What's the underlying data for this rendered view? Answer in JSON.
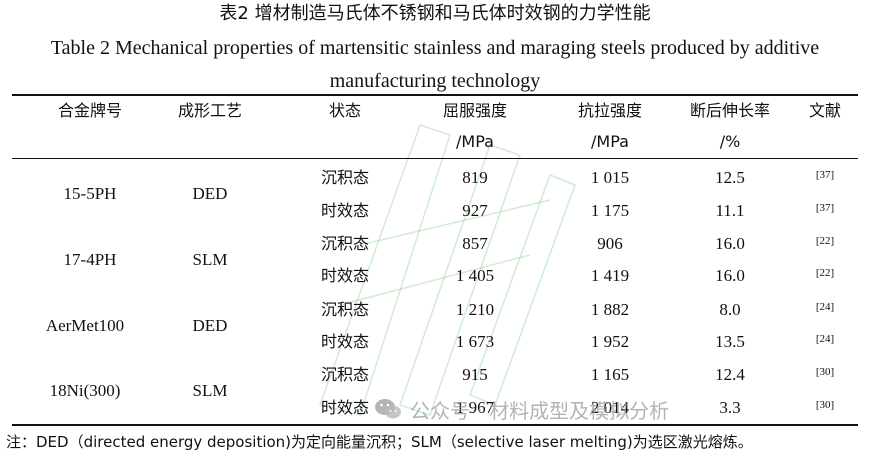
{
  "title": {
    "cn": "表2  增材制造马氏体不锈钢和马氏体时效钢的力学性能",
    "en": "Table 2 Mechanical properties of martensitic stainless and maraging steels produced by additive manufacturing technology"
  },
  "table": {
    "headers": [
      {
        "line1": "合金牌号",
        "line2": ""
      },
      {
        "line1": "成形工艺",
        "line2": ""
      },
      {
        "line1": "状态",
        "line2": ""
      },
      {
        "line1": "屈服强度",
        "line2": "/MPa"
      },
      {
        "line1": "抗拉强度",
        "line2": "/MPa"
      },
      {
        "line1": "断后伸长率",
        "line2": "/%"
      },
      {
        "line1": "文献",
        "line2": ""
      }
    ],
    "groups": [
      {
        "alloy": "15-5PH",
        "process": "DED",
        "rows": [
          {
            "state": "沉积态",
            "yield": "819",
            "tensile": "1 015",
            "elongation": "12.5",
            "ref": "[37]"
          },
          {
            "state": "时效态",
            "yield": "927",
            "tensile": "1 175",
            "elongation": "11.1",
            "ref": "[37]"
          }
        ]
      },
      {
        "alloy": "17-4PH",
        "process": "SLM",
        "rows": [
          {
            "state": "沉积态",
            "yield": "857",
            "tensile": "906",
            "elongation": "16.0",
            "ref": "[22]"
          },
          {
            "state": "时效态",
            "yield": "1 405",
            "tensile": "1 419",
            "elongation": "16.0",
            "ref": "[22]"
          }
        ]
      },
      {
        "alloy": "AerMet100",
        "process": "DED",
        "rows": [
          {
            "state": "沉积态",
            "yield": "1 210",
            "tensile": "1 882",
            "elongation": "8.0",
            "ref": "[24]"
          },
          {
            "state": "时效态",
            "yield": "1 673",
            "tensile": "1 952",
            "elongation": "13.5",
            "ref": "[24]"
          }
        ]
      },
      {
        "alloy": "18Ni(300)",
        "process": "SLM",
        "rows": [
          {
            "state": "沉积态",
            "yield": "915",
            "tensile": "1 165",
            "elongation": "12.4",
            "ref": "[30]"
          },
          {
            "state": "时效态",
            "yield": "1 967",
            "tensile": "2 014",
            "elongation": "3.3",
            "ref": "[30]"
          }
        ]
      }
    ]
  },
  "note": "注：DED（directed energy deposition)为定向能量沉积；SLM（selective laser melting)为选区激光熔炼。",
  "watermark": {
    "text": "公众号 · 材料成型及模拟分析",
    "icon": "wechat-icon"
  }
}
